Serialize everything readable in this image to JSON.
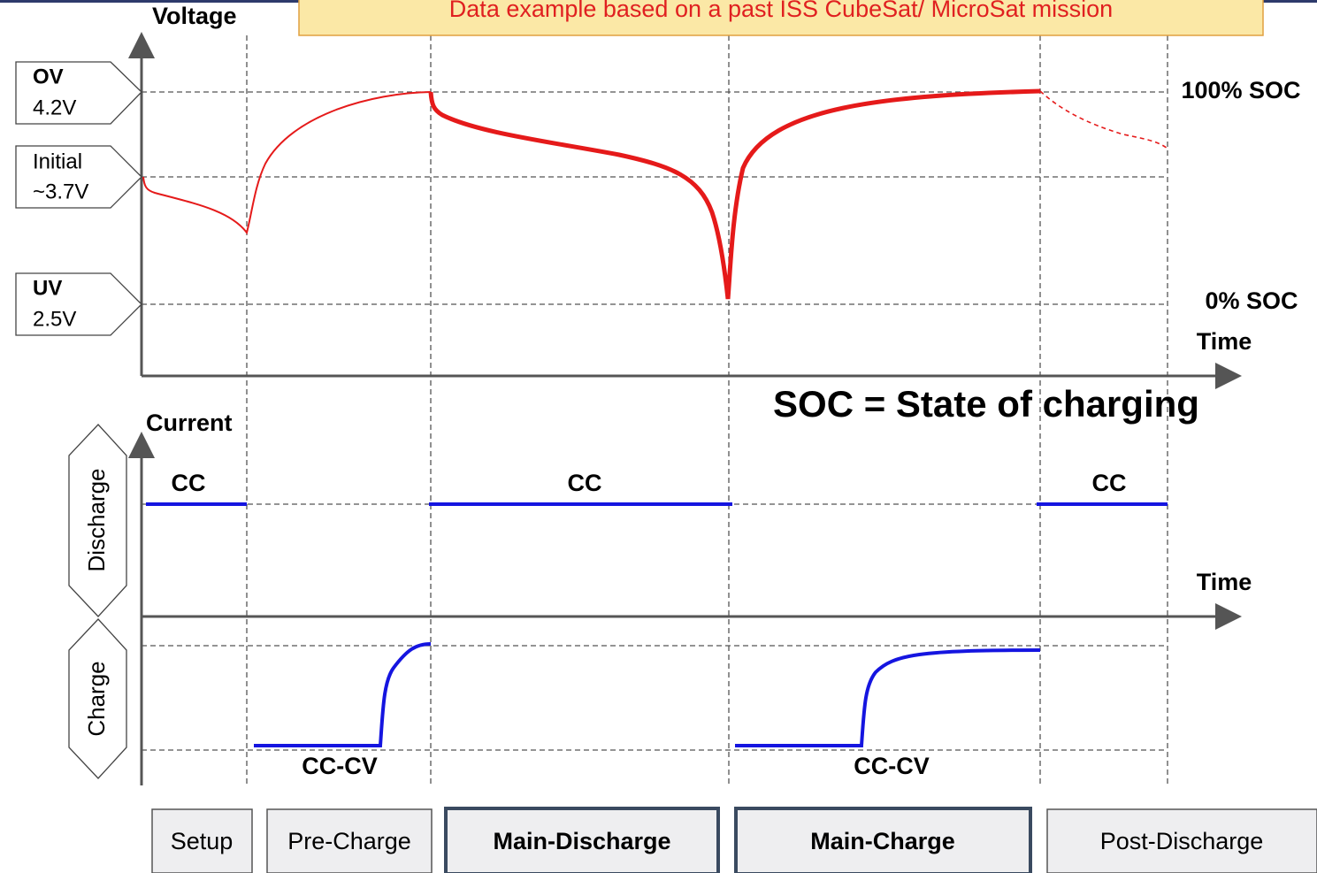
{
  "banner": "Data example based on a past ISS CubeSat/ MicroSat mission",
  "voltage_plot": {
    "y_label": "Voltage",
    "x_label": "Time",
    "markers": [
      {
        "name": "OV",
        "value": "4.2V"
      },
      {
        "name": "Initial",
        "value": "~3.7V"
      },
      {
        "name": "UV",
        "value": "2.5V"
      }
    ],
    "soc_full": "100% SOC",
    "soc_empty": "0% SOC"
  },
  "soc_note": "SOC = State of charging",
  "current_plot": {
    "y_label": "Current",
    "x_label": "Time",
    "discharge": "Discharge",
    "charge": "Charge",
    "labels": [
      "CC",
      "CC",
      "CC",
      "CC-CV",
      "CC-CV"
    ]
  },
  "phases": [
    "Setup",
    "Pre-Charge",
    "Main-Discharge",
    "Main-Charge",
    "Post-Discharge"
  ]
}
